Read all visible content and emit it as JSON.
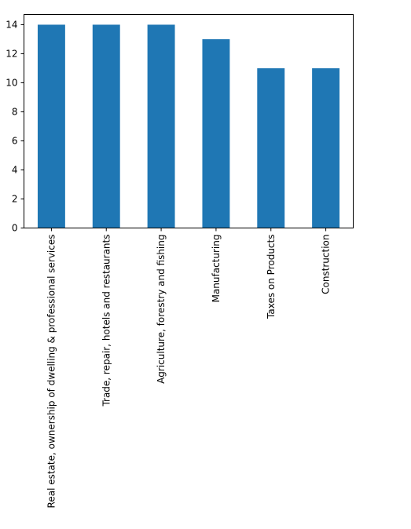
{
  "chart_data": {
    "type": "bar",
    "categories": [
      "Real estate, ownership of dwelling & professional services",
      "Trade, repair, hotels and restaurants",
      "Agriculture, forestry and fishing",
      "Manufacturing",
      "Taxes on Products",
      "Construction"
    ],
    "values": [
      14,
      14,
      14,
      13,
      11,
      11
    ],
    "ylim": [
      0,
      14.7
    ],
    "yticks": [
      "0",
      "2",
      "4",
      "6",
      "8",
      "10",
      "12",
      "14"
    ],
    "grid": false,
    "bar_color": "#1f77b4"
  }
}
